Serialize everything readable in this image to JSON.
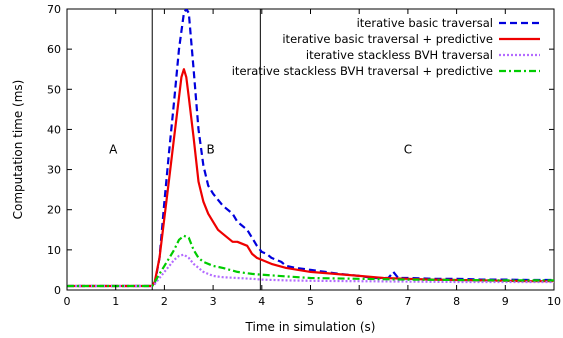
{
  "chart_data": {
    "type": "line",
    "title": "",
    "xlabel": "Time in simulation (s)",
    "ylabel": "Computation time (ms)",
    "xlim": [
      0,
      10
    ],
    "ylim": [
      0,
      70
    ],
    "xticks": [
      0,
      1,
      2,
      3,
      4,
      5,
      6,
      7,
      8,
      9,
      10
    ],
    "yticks": [
      0,
      10,
      20,
      30,
      40,
      50,
      60,
      70
    ],
    "grid": false,
    "legend_position": "top-right",
    "phase_lines_x": [
      1.75,
      3.97
    ],
    "phase_labels": [
      {
        "text": "A",
        "x": 0.95,
        "y": 35
      },
      {
        "text": "B",
        "x": 2.95,
        "y": 35
      },
      {
        "text": "C",
        "x": 7.0,
        "y": 35
      }
    ],
    "series": [
      {
        "name": "iterative basic traversal",
        "color": "#0000dd",
        "dash": "dashed",
        "x": [
          0,
          0.5,
          1.0,
          1.5,
          1.75,
          1.8,
          1.9,
          2.0,
          2.1,
          2.2,
          2.3,
          2.4,
          2.45,
          2.5,
          2.6,
          2.7,
          2.8,
          2.9,
          3.0,
          3.2,
          3.4,
          3.5,
          3.7,
          3.8,
          3.9,
          4.0,
          4.1,
          4.2,
          4.4,
          4.5,
          4.7,
          5.0,
          5.3,
          5.6,
          6.0,
          6.3,
          6.6,
          6.7,
          6.8,
          7.0,
          7.5,
          8.0,
          8.5,
          9.0,
          9.5,
          10.0
        ],
        "y": [
          1.0,
          1.0,
          1.0,
          1.0,
          1.0,
          1.5,
          8.0,
          22.0,
          35.0,
          47.0,
          60.0,
          69.0,
          70.0,
          69.0,
          55.0,
          40.0,
          31.0,
          26.0,
          24.0,
          21.0,
          19.0,
          17.0,
          15.0,
          13.0,
          11.0,
          9.5,
          9.0,
          8.0,
          7.0,
          6.0,
          5.5,
          5.0,
          4.5,
          4.0,
          3.5,
          3.0,
          3.0,
          4.5,
          3.0,
          3.0,
          2.8,
          2.8,
          2.6,
          2.6,
          2.5,
          2.5
        ]
      },
      {
        "name": "iterative basic traversal + predictive",
        "color": "#ee0000",
        "dash": "solid",
        "x": [
          0,
          0.5,
          1.0,
          1.5,
          1.75,
          1.8,
          1.9,
          2.0,
          2.1,
          2.2,
          2.3,
          2.35,
          2.4,
          2.45,
          2.5,
          2.6,
          2.7,
          2.8,
          2.9,
          3.0,
          3.1,
          3.2,
          3.3,
          3.4,
          3.5,
          3.6,
          3.7,
          3.8,
          3.9,
          4.0,
          4.2,
          4.5,
          5.0,
          5.5,
          6.0,
          6.5,
          7.0,
          7.5,
          8.0,
          8.5,
          9.0,
          9.5,
          10.0
        ],
        "y": [
          1.0,
          1.0,
          1.0,
          1.0,
          1.0,
          2.0,
          8.0,
          18.0,
          28.0,
          38.0,
          48.0,
          53.0,
          55.0,
          53.0,
          48.0,
          38.0,
          27.0,
          22.0,
          19.0,
          17.0,
          15.0,
          14.0,
          13.0,
          12.0,
          12.0,
          11.5,
          11.0,
          9.0,
          8.0,
          7.5,
          6.5,
          5.5,
          4.5,
          4.0,
          3.5,
          3.0,
          2.8,
          2.6,
          2.5,
          2.4,
          2.3,
          2.2,
          2.2
        ]
      },
      {
        "name": "iterative stackless BVH traversal",
        "color": "#b36bff",
        "dash": "dotted",
        "x": [
          0,
          0.5,
          1.0,
          1.5,
          1.75,
          1.8,
          1.9,
          2.0,
          2.1,
          2.2,
          2.3,
          2.4,
          2.5,
          2.6,
          2.7,
          2.8,
          3.0,
          3.2,
          3.5,
          3.8,
          4.0,
          4.5,
          5.0,
          6.0,
          7.0,
          8.0,
          9.0,
          10.0
        ],
        "y": [
          1.0,
          1.0,
          1.0,
          1.0,
          1.0,
          1.5,
          3.0,
          4.5,
          6.0,
          7.5,
          8.5,
          8.8,
          8.0,
          6.5,
          5.5,
          4.5,
          3.5,
          3.2,
          3.0,
          2.8,
          2.6,
          2.4,
          2.3,
          2.2,
          2.1,
          2.0,
          2.0,
          2.0
        ]
      },
      {
        "name": "iterative stackless BVH traversal + predictive",
        "color": "#00cc00",
        "dash": "dashdot",
        "x": [
          0,
          0.5,
          1.0,
          1.5,
          1.75,
          1.8,
          1.9,
          2.0,
          2.1,
          2.2,
          2.3,
          2.4,
          2.5,
          2.6,
          2.7,
          2.8,
          3.0,
          3.2,
          3.5,
          3.8,
          4.0,
          4.5,
          5.0,
          6.0,
          7.0,
          8.0,
          9.0,
          10.0
        ],
        "y": [
          1.0,
          1.0,
          1.0,
          1.0,
          1.0,
          2.0,
          4.0,
          6.0,
          8.0,
          10.0,
          12.5,
          13.5,
          13.0,
          10.0,
          8.0,
          7.0,
          6.0,
          5.5,
          4.5,
          4.0,
          3.8,
          3.4,
          3.0,
          2.8,
          2.6,
          2.5,
          2.4,
          2.4
        ]
      }
    ]
  }
}
